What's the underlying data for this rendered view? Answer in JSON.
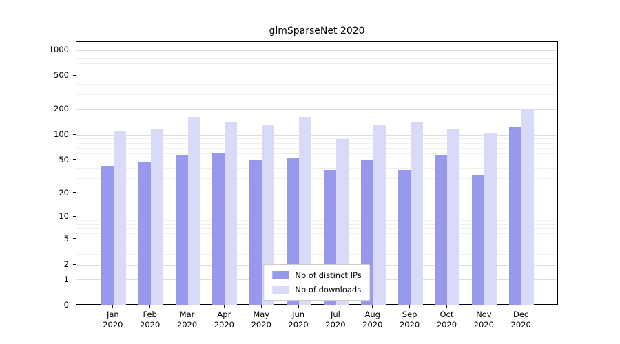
{
  "chart_data": {
    "type": "bar",
    "title": "glmSparseNet 2020",
    "categories": [
      "Jan\n2020",
      "Feb\n2020",
      "Mar\n2020",
      "Apr\n2020",
      "May\n2020",
      "Jun\n2020",
      "Jul\n2020",
      "Aug\n2020",
      "Sep\n2020",
      "Oct\n2020",
      "Nov\n2020",
      "Dec\n2020"
    ],
    "series": [
      {
        "name": "Nb of distinct IPs",
        "color": "#9898ec",
        "values": [
          43,
          48,
          57,
          60,
          50,
          54,
          38,
          50,
          38,
          58,
          33,
          125
        ]
      },
      {
        "name": "Nb of downloads",
        "color": "#d9d9f8",
        "values": [
          110,
          120,
          165,
          140,
          130,
          165,
          90,
          130,
          140,
          120,
          105,
          200
        ]
      }
    ],
    "yticks": [
      0,
      1,
      2,
      5,
      10,
      20,
      50,
      100,
      200,
      500,
      1000
    ],
    "minor_yticks": [
      3,
      4,
      6,
      7,
      8,
      9,
      30,
      40,
      60,
      70,
      80,
      90,
      300,
      400,
      600,
      700,
      800,
      900
    ],
    "scale": "log1p",
    "ylim": [
      0,
      1000
    ],
    "xlabel": "",
    "ylabel": "",
    "grid": true,
    "legend_position": "lower center"
  }
}
